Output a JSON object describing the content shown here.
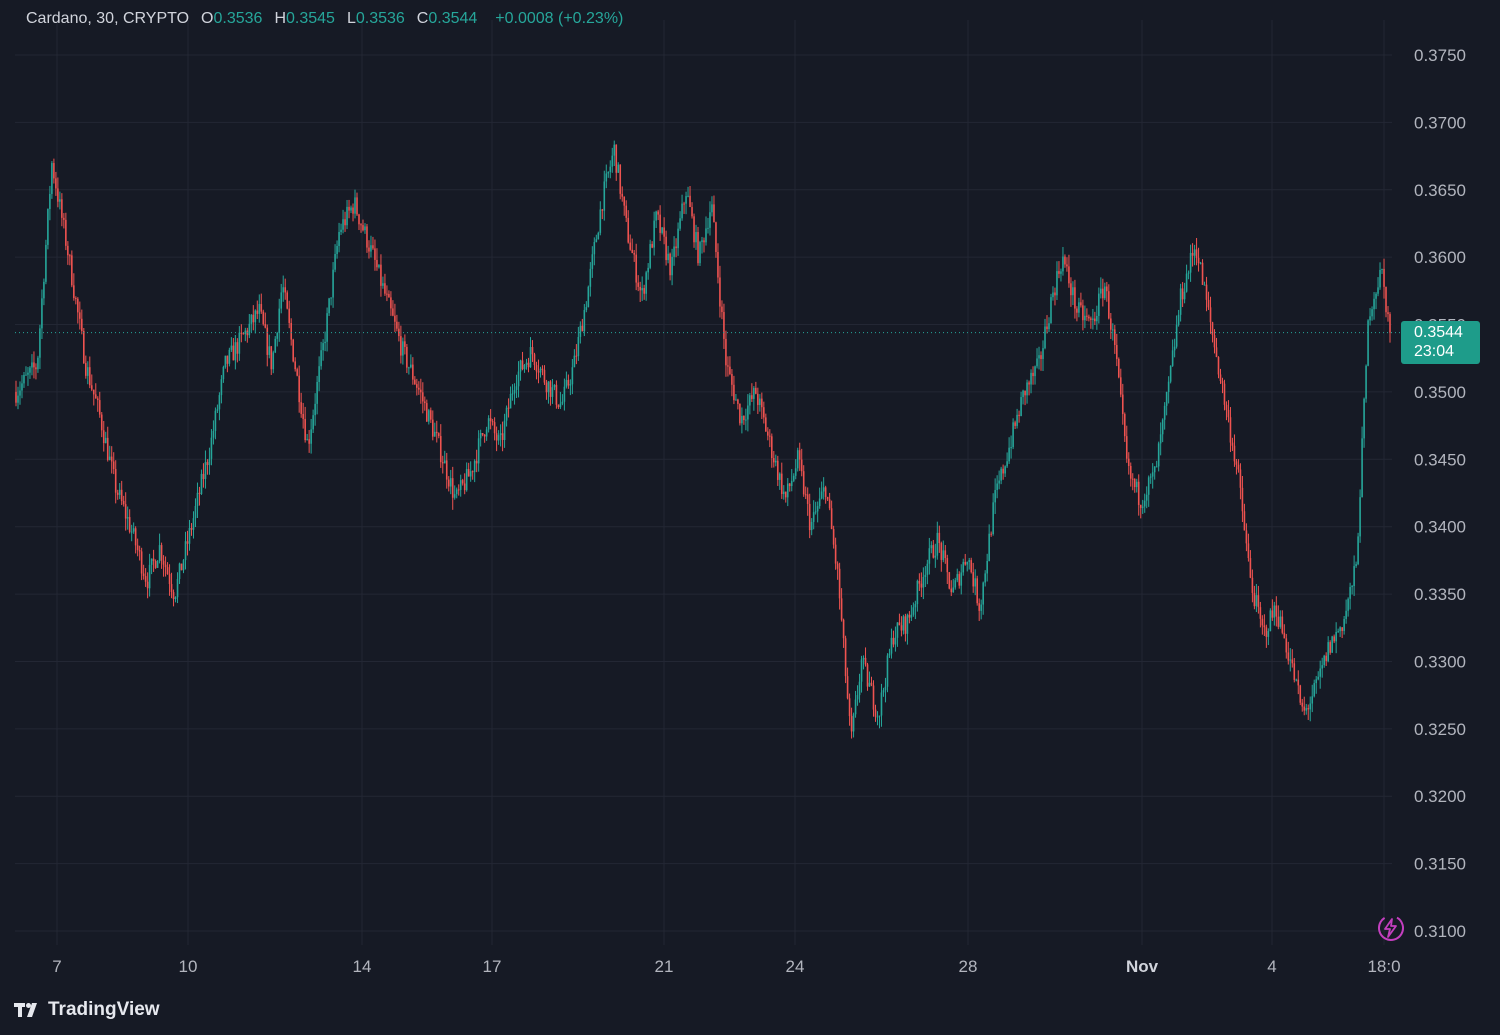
{
  "legend": {
    "symbol": "Cardano, 30, CRYPTO",
    "open_label": "O",
    "open": "0.3536",
    "high_label": "H",
    "high": "0.3545",
    "low_label": "L",
    "low": "0.3536",
    "close_label": "C",
    "close": "0.3544",
    "change": "+0.0008 (+0.23%)"
  },
  "price_tag": {
    "price": "0.3544",
    "countdown": "23:04"
  },
  "branding": {
    "name": "TradingView"
  },
  "colors": {
    "up": "#26a69a",
    "down": "#ef5350",
    "background": "#161a25",
    "grid": "#232734",
    "tag": "#1e9c8a"
  },
  "icons": {
    "replay": "lightning-bolt-icon",
    "logo": "tradingview-logo-icon"
  },
  "chart_data": {
    "type": "candlestick",
    "title": "Cardano, 30, CRYPTO",
    "y_axis": {
      "ticks": [
        "0.3750",
        "0.3700",
        "0.3650",
        "0.3600",
        "0.3550",
        "0.3500",
        "0.3450",
        "0.3400",
        "0.3350",
        "0.3300",
        "0.3250",
        "0.3200",
        "0.3150",
        "0.3100"
      ],
      "ylim": [
        0.308,
        0.379
      ]
    },
    "x_axis": {
      "ticks": [
        "7",
        "10",
        "14",
        "17",
        "21",
        "24",
        "28",
        "Nov",
        "4",
        "18:0"
      ]
    },
    "last_price": 0.3544,
    "grid": true,
    "approx_close_path": [
      [
        0,
        0.35
      ],
      [
        1.0,
        0.352
      ],
      [
        1.7,
        0.367
      ],
      [
        2.5,
        0.36
      ],
      [
        3.3,
        0.352
      ],
      [
        4.0,
        0.348
      ],
      [
        4.7,
        0.343
      ],
      [
        5.4,
        0.34
      ],
      [
        6.2,
        0.336
      ],
      [
        6.8,
        0.3385
      ],
      [
        7.5,
        0.335
      ],
      [
        8.3,
        0.34
      ],
      [
        9.2,
        0.346
      ],
      [
        9.9,
        0.352
      ],
      [
        10.7,
        0.354
      ],
      [
        11.5,
        0.356
      ],
      [
        12.1,
        0.352
      ],
      [
        12.6,
        0.358
      ],
      [
        13.3,
        0.351
      ],
      [
        13.8,
        0.346
      ],
      [
        14.6,
        0.354
      ],
      [
        15.3,
        0.362
      ],
      [
        16.0,
        0.364
      ],
      [
        16.9,
        0.36
      ],
      [
        17.5,
        0.357
      ],
      [
        18.3,
        0.353
      ],
      [
        19.1,
        0.35
      ],
      [
        20.0,
        0.346
      ],
      [
        20.8,
        0.342
      ],
      [
        21.5,
        0.344
      ],
      [
        22.3,
        0.348
      ],
      [
        22.9,
        0.346
      ],
      [
        23.6,
        0.351
      ],
      [
        24.4,
        0.353
      ],
      [
        25.0,
        0.351
      ],
      [
        25.8,
        0.349
      ],
      [
        26.4,
        0.352
      ],
      [
        27.0,
        0.357
      ],
      [
        27.7,
        0.364
      ],
      [
        28.3,
        0.368
      ],
      [
        28.9,
        0.362
      ],
      [
        29.6,
        0.357
      ],
      [
        30.3,
        0.363
      ],
      [
        31.0,
        0.359
      ],
      [
        31.7,
        0.365
      ],
      [
        32.3,
        0.36
      ],
      [
        32.9,
        0.364
      ],
      [
        33.6,
        0.352
      ],
      [
        34.3,
        0.348
      ],
      [
        35.0,
        0.35
      ],
      [
        35.7,
        0.346
      ],
      [
        36.4,
        0.342
      ],
      [
        37.0,
        0.345
      ],
      [
        37.6,
        0.34
      ],
      [
        38.3,
        0.343
      ],
      [
        38.9,
        0.336
      ],
      [
        39.5,
        0.324
      ],
      [
        40.0,
        0.33
      ],
      [
        40.8,
        0.326
      ],
      [
        41.5,
        0.332
      ],
      [
        42.2,
        0.333
      ],
      [
        43.0,
        0.337
      ],
      [
        43.6,
        0.339
      ],
      [
        44.3,
        0.335
      ],
      [
        45.0,
        0.338
      ],
      [
        45.6,
        0.334
      ],
      [
        46.3,
        0.342
      ],
      [
        47.0,
        0.346
      ],
      [
        47.7,
        0.35
      ],
      [
        48.4,
        0.352
      ],
      [
        49.0,
        0.357
      ],
      [
        49.5,
        0.36
      ],
      [
        50.2,
        0.356
      ],
      [
        50.9,
        0.355
      ],
      [
        51.5,
        0.358
      ],
      [
        52.0,
        0.353
      ],
      [
        52.6,
        0.344
      ],
      [
        53.2,
        0.342
      ],
      [
        53.9,
        0.344
      ],
      [
        54.5,
        0.35
      ],
      [
        55.1,
        0.357
      ],
      [
        55.8,
        0.361
      ],
      [
        56.4,
        0.356
      ],
      [
        57.1,
        0.35
      ],
      [
        57.8,
        0.344
      ],
      [
        58.4,
        0.336
      ],
      [
        59.0,
        0.332
      ],
      [
        59.6,
        0.334
      ],
      [
        60.3,
        0.33
      ],
      [
        60.9,
        0.326
      ],
      [
        61.5,
        0.328
      ],
      [
        62.1,
        0.331
      ],
      [
        62.8,
        0.333
      ],
      [
        63.4,
        0.337
      ],
      [
        64.0,
        0.356
      ],
      [
        64.6,
        0.359
      ],
      [
        65.0,
        0.3544
      ]
    ]
  }
}
